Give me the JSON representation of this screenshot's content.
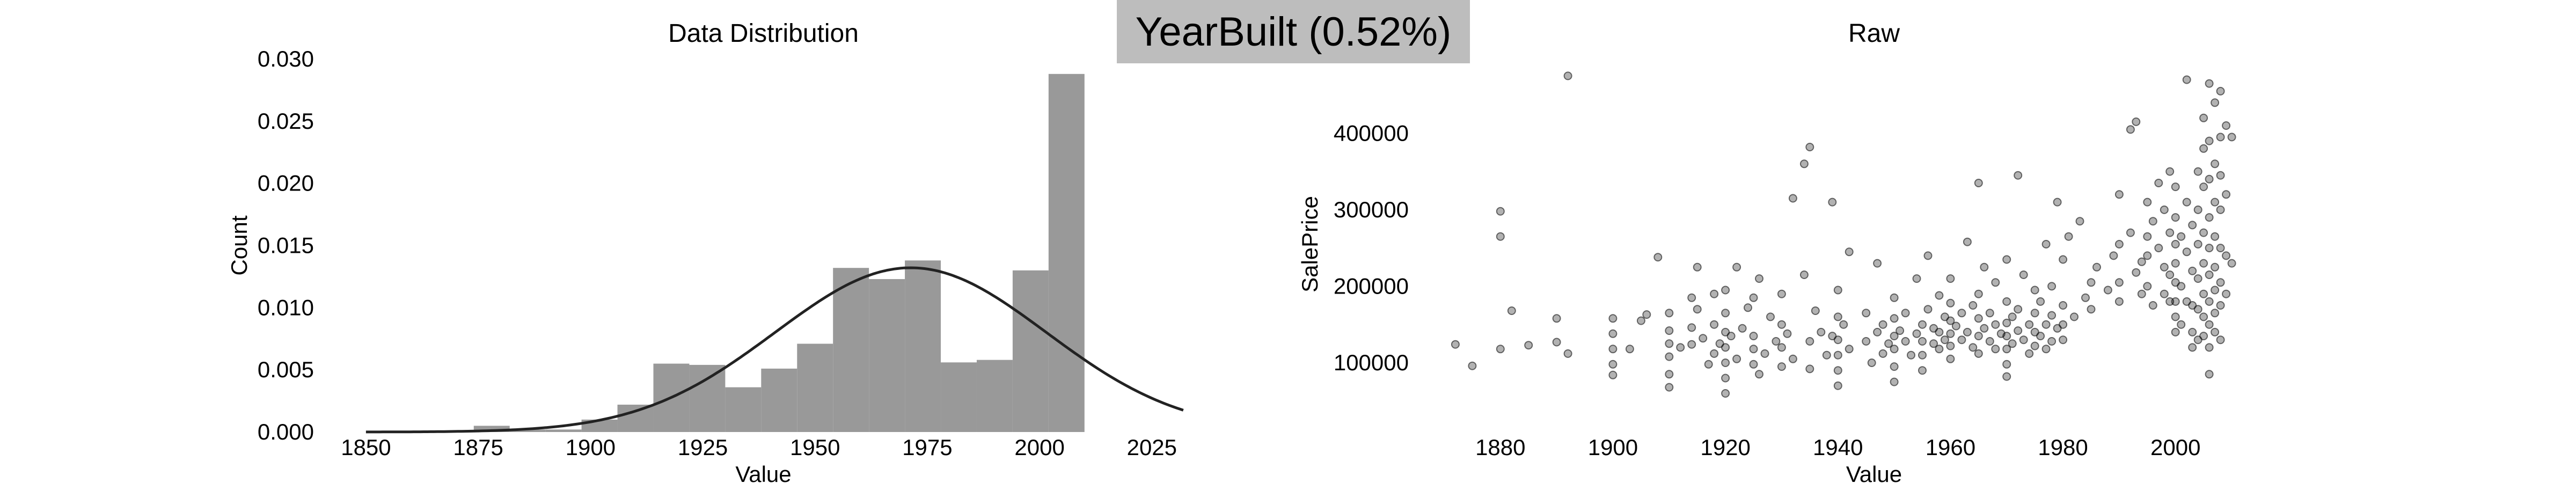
{
  "badge": {
    "text": "YearBuilt (0.52%)",
    "background": "#bdbdbd"
  },
  "chart_data": [
    {
      "type": "bar",
      "title": "Data Distribution",
      "xlabel": "Value",
      "ylabel": "Count",
      "xlim": [
        1842,
        2035
      ],
      "ylim": [
        0,
        0.03
      ],
      "xticks": [
        1850,
        1875,
        1900,
        1925,
        1950,
        1975,
        2000,
        2025
      ],
      "yticks": [
        0.0,
        0.005,
        0.01,
        0.015,
        0.02,
        0.025,
        0.03
      ],
      "bar_color": "#999999",
      "bin_width": 8,
      "bins": [
        {
          "x0": 1874,
          "x1": 1882,
          "value": 0.0005
        },
        {
          "x0": 1882,
          "x1": 1890,
          "value": 0.0002
        },
        {
          "x0": 1890,
          "x1": 1898,
          "value": 0.0002
        },
        {
          "x0": 1898,
          "x1": 1906,
          "value": 0.001
        },
        {
          "x0": 1906,
          "x1": 1914,
          "value": 0.0022
        },
        {
          "x0": 1914,
          "x1": 1922,
          "value": 0.0055
        },
        {
          "x0": 1922,
          "x1": 1930,
          "value": 0.0054
        },
        {
          "x0": 1930,
          "x1": 1938,
          "value": 0.0036
        },
        {
          "x0": 1938,
          "x1": 1946,
          "value": 0.0051
        },
        {
          "x0": 1946,
          "x1": 1954,
          "value": 0.0071
        },
        {
          "x0": 1954,
          "x1": 1962,
          "value": 0.0132
        },
        {
          "x0": 1962,
          "x1": 1970,
          "value": 0.0123
        },
        {
          "x0": 1970,
          "x1": 1978,
          "value": 0.0138
        },
        {
          "x0": 1978,
          "x1": 1986,
          "value": 0.0056
        },
        {
          "x0": 1986,
          "x1": 1994,
          "value": 0.0058
        },
        {
          "x0": 1994,
          "x1": 2002,
          "value": 0.013
        },
        {
          "x0": 2002,
          "x1": 2010,
          "value": 0.0288
        }
      ],
      "normal_curve": {
        "mean": 1971.3,
        "std": 30.2,
        "x_range": [
          1850,
          2032
        ],
        "color": "#222222"
      }
    },
    {
      "type": "scatter",
      "title": "Raw",
      "xlabel": "Value",
      "ylabel": "SalePrice",
      "xlim": [
        1868,
        2013
      ],
      "ylim": [
        20000,
        490000
      ],
      "xticks": [
        1880,
        1900,
        1920,
        1940,
        1960,
        1980,
        2000
      ],
      "yticks": [
        100000,
        200000,
        300000,
        400000
      ],
      "point_color": "#000000",
      "point_opacity": 0.3,
      "points": [
        [
          1872,
          124000
        ],
        [
          1875,
          96000
        ],
        [
          1880,
          298000
        ],
        [
          1880,
          265000
        ],
        [
          1880,
          118000
        ],
        [
          1882,
          168000
        ],
        [
          1885,
          123000
        ],
        [
          1890,
          158000
        ],
        [
          1890,
          127000
        ],
        [
          1892,
          475000
        ],
        [
          1892,
          112000
        ],
        [
          1900,
          158000
        ],
        [
          1900,
          138000
        ],
        [
          1900,
          118000
        ],
        [
          1900,
          98000
        ],
        [
          1900,
          84000
        ],
        [
          1903,
          118000
        ],
        [
          1905,
          155000
        ],
        [
          1906,
          163000
        ],
        [
          1908,
          238000
        ],
        [
          1910,
          165000
        ],
        [
          1910,
          142000
        ],
        [
          1910,
          125000
        ],
        [
          1910,
          108000
        ],
        [
          1910,
          85000
        ],
        [
          1910,
          68000
        ],
        [
          1912,
          120000
        ],
        [
          1914,
          185000
        ],
        [
          1914,
          146000
        ],
        [
          1914,
          124000
        ],
        [
          1915,
          225000
        ],
        [
          1915,
          170000
        ],
        [
          1916,
          132000
        ],
        [
          1917,
          98000
        ],
        [
          1918,
          190000
        ],
        [
          1918,
          150000
        ],
        [
          1918,
          112000
        ],
        [
          1919,
          125000
        ],
        [
          1920,
          195000
        ],
        [
          1920,
          165000
        ],
        [
          1920,
          140000
        ],
        [
          1920,
          120000
        ],
        [
          1920,
          100000
        ],
        [
          1920,
          80000
        ],
        [
          1920,
          60000
        ],
        [
          1921,
          135000
        ],
        [
          1922,
          225000
        ],
        [
          1922,
          105000
        ],
        [
          1923,
          145000
        ],
        [
          1924,
          172000
        ],
        [
          1925,
          185000
        ],
        [
          1925,
          135000
        ],
        [
          1925,
          118000
        ],
        [
          1925,
          98000
        ],
        [
          1926,
          210000
        ],
        [
          1926,
          85000
        ],
        [
          1927,
          112000
        ],
        [
          1928,
          160000
        ],
        [
          1929,
          128000
        ],
        [
          1930,
          190000
        ],
        [
          1930,
          150000
        ],
        [
          1930,
          120000
        ],
        [
          1930,
          95000
        ],
        [
          1931,
          138000
        ],
        [
          1932,
          315000
        ],
        [
          1932,
          105000
        ],
        [
          1934,
          215000
        ],
        [
          1934,
          360000
        ],
        [
          1935,
          382000
        ],
        [
          1935,
          128000
        ],
        [
          1935,
          92000
        ],
        [
          1936,
          168000
        ],
        [
          1937,
          140000
        ],
        [
          1938,
          110000
        ],
        [
          1939,
          310000
        ],
        [
          1939,
          135000
        ],
        [
          1940,
          195000
        ],
        [
          1940,
          160000
        ],
        [
          1940,
          130000
        ],
        [
          1940,
          110000
        ],
        [
          1940,
          90000
        ],
        [
          1940,
          70000
        ],
        [
          1941,
          150000
        ],
        [
          1942,
          245000
        ],
        [
          1942,
          118000
        ],
        [
          1945,
          165000
        ],
        [
          1945,
          128000
        ],
        [
          1946,
          100000
        ],
        [
          1947,
          230000
        ],
        [
          1947,
          140000
        ],
        [
          1948,
          112000
        ],
        [
          1948,
          150000
        ],
        [
          1949,
          125000
        ],
        [
          1950,
          185000
        ],
        [
          1950,
          158000
        ],
        [
          1950,
          135000
        ],
        [
          1950,
          118000
        ],
        [
          1950,
          95000
        ],
        [
          1950,
          75000
        ],
        [
          1951,
          142000
        ],
        [
          1952,
          128000
        ],
        [
          1952,
          165000
        ],
        [
          1953,
          110000
        ],
        [
          1954,
          210000
        ],
        [
          1954,
          138000
        ],
        [
          1955,
          150000
        ],
        [
          1955,
          128000
        ],
        [
          1955,
          110000
        ],
        [
          1955,
          90000
        ],
        [
          1956,
          170000
        ],
        [
          1956,
          240000
        ],
        [
          1957,
          145000
        ],
        [
          1957,
          125000
        ],
        [
          1958,
          188000
        ],
        [
          1958,
          140000
        ],
        [
          1958,
          118000
        ],
        [
          1959,
          160000
        ],
        [
          1959,
          130000
        ],
        [
          1960,
          210000
        ],
        [
          1960,
          178000
        ],
        [
          1960,
          155000
        ],
        [
          1960,
          138000
        ],
        [
          1960,
          122000
        ],
        [
          1960,
          105000
        ],
        [
          1961,
          148000
        ],
        [
          1962,
          165000
        ],
        [
          1962,
          130000
        ],
        [
          1963,
          258000
        ],
        [
          1963,
          140000
        ],
        [
          1964,
          175000
        ],
        [
          1964,
          120000
        ],
        [
          1965,
          335000
        ],
        [
          1965,
          190000
        ],
        [
          1965,
          158000
        ],
        [
          1965,
          135000
        ],
        [
          1965,
          112000
        ],
        [
          1966,
          145000
        ],
        [
          1966,
          225000
        ],
        [
          1967,
          165000
        ],
        [
          1967,
          128000
        ],
        [
          1968,
          205000
        ],
        [
          1968,
          150000
        ],
        [
          1968,
          118000
        ],
        [
          1969,
          138000
        ],
        [
          1970,
          235000
        ],
        [
          1970,
          180000
        ],
        [
          1970,
          152000
        ],
        [
          1970,
          135000
        ],
        [
          1970,
          118000
        ],
        [
          1970,
          98000
        ],
        [
          1970,
          82000
        ],
        [
          1971,
          160000
        ],
        [
          1971,
          125000
        ],
        [
          1972,
          345000
        ],
        [
          1972,
          170000
        ],
        [
          1972,
          142000
        ],
        [
          1973,
          215000
        ],
        [
          1973,
          130000
        ],
        [
          1974,
          150000
        ],
        [
          1974,
          112000
        ],
        [
          1975,
          195000
        ],
        [
          1975,
          165000
        ],
        [
          1975,
          140000
        ],
        [
          1975,
          122000
        ],
        [
          1976,
          180000
        ],
        [
          1976,
          135000
        ],
        [
          1977,
          255000
        ],
        [
          1977,
          150000
        ],
        [
          1977,
          118000
        ],
        [
          1978,
          200000
        ],
        [
          1978,
          162000
        ],
        [
          1978,
          128000
        ],
        [
          1979,
          145000
        ],
        [
          1979,
          310000
        ],
        [
          1980,
          235000
        ],
        [
          1980,
          175000
        ],
        [
          1980,
          150000
        ],
        [
          1980,
          130000
        ],
        [
          1981,
          265000
        ],
        [
          1982,
          160000
        ],
        [
          1983,
          285000
        ],
        [
          1984,
          185000
        ],
        [
          1985,
          205000
        ],
        [
          1985,
          170000
        ],
        [
          1986,
          225000
        ],
        [
          1988,
          195000
        ],
        [
          1989,
          240000
        ],
        [
          1990,
          320000
        ],
        [
          1990,
          255000
        ],
        [
          1990,
          205000
        ],
        [
          1990,
          180000
        ],
        [
          1992,
          405000
        ],
        [
          1992,
          270000
        ],
        [
          1993,
          415000
        ],
        [
          1993,
          218000
        ],
        [
          1994,
          232000
        ],
        [
          1994,
          190000
        ],
        [
          1995,
          310000
        ],
        [
          1995,
          265000
        ],
        [
          1995,
          240000
        ],
        [
          1995,
          200000
        ],
        [
          1996,
          285000
        ],
        [
          1996,
          175000
        ],
        [
          1997,
          335000
        ],
        [
          1997,
          250000
        ],
        [
          1998,
          300000
        ],
        [
          1998,
          225000
        ],
        [
          1998,
          190000
        ],
        [
          1999,
          350000
        ],
        [
          1999,
          270000
        ],
        [
          1999,
          215000
        ],
        [
          1999,
          180000
        ],
        [
          2000,
          330000
        ],
        [
          2000,
          290000
        ],
        [
          2000,
          255000
        ],
        [
          2000,
          230000
        ],
        [
          2000,
          205000
        ],
        [
          2000,
          180000
        ],
        [
          2000,
          160000
        ],
        [
          2000,
          140000
        ],
        [
          2001,
          265000
        ],
        [
          2001,
          200000
        ],
        [
          2001,
          150000
        ],
        [
          2002,
          470000
        ],
        [
          2002,
          310000
        ],
        [
          2002,
          245000
        ],
        [
          2002,
          180000
        ],
        [
          2003,
          280000
        ],
        [
          2003,
          220000
        ],
        [
          2003,
          175000
        ],
        [
          2003,
          140000
        ],
        [
          2003,
          120000
        ],
        [
          2004,
          350000
        ],
        [
          2004,
          300000
        ],
        [
          2004,
          255000
        ],
        [
          2004,
          210000
        ],
        [
          2004,
          170000
        ],
        [
          2004,
          130000
        ],
        [
          2005,
          420000
        ],
        [
          2005,
          380000
        ],
        [
          2005,
          330000
        ],
        [
          2005,
          270000
        ],
        [
          2005,
          230000
        ],
        [
          2005,
          190000
        ],
        [
          2005,
          160000
        ],
        [
          2005,
          135000
        ],
        [
          2006,
          465000
        ],
        [
          2006,
          390000
        ],
        [
          2006,
          340000
        ],
        [
          2006,
          290000
        ],
        [
          2006,
          250000
        ],
        [
          2006,
          215000
        ],
        [
          2006,
          180000
        ],
        [
          2006,
          150000
        ],
        [
          2006,
          120000
        ],
        [
          2006,
          85000
        ],
        [
          2007,
          440000
        ],
        [
          2007,
          360000
        ],
        [
          2007,
          310000
        ],
        [
          2007,
          265000
        ],
        [
          2007,
          225000
        ],
        [
          2007,
          195000
        ],
        [
          2007,
          165000
        ],
        [
          2007,
          140000
        ],
        [
          2008,
          455000
        ],
        [
          2008,
          395000
        ],
        [
          2008,
          345000
        ],
        [
          2008,
          300000
        ],
        [
          2008,
          250000
        ],
        [
          2008,
          205000
        ],
        [
          2008,
          175000
        ],
        [
          2008,
          130000
        ],
        [
          2009,
          410000
        ],
        [
          2009,
          320000
        ],
        [
          2009,
          240000
        ],
        [
          2009,
          190000
        ],
        [
          2010,
          395000
        ],
        [
          2010,
          230000
        ]
      ]
    }
  ]
}
